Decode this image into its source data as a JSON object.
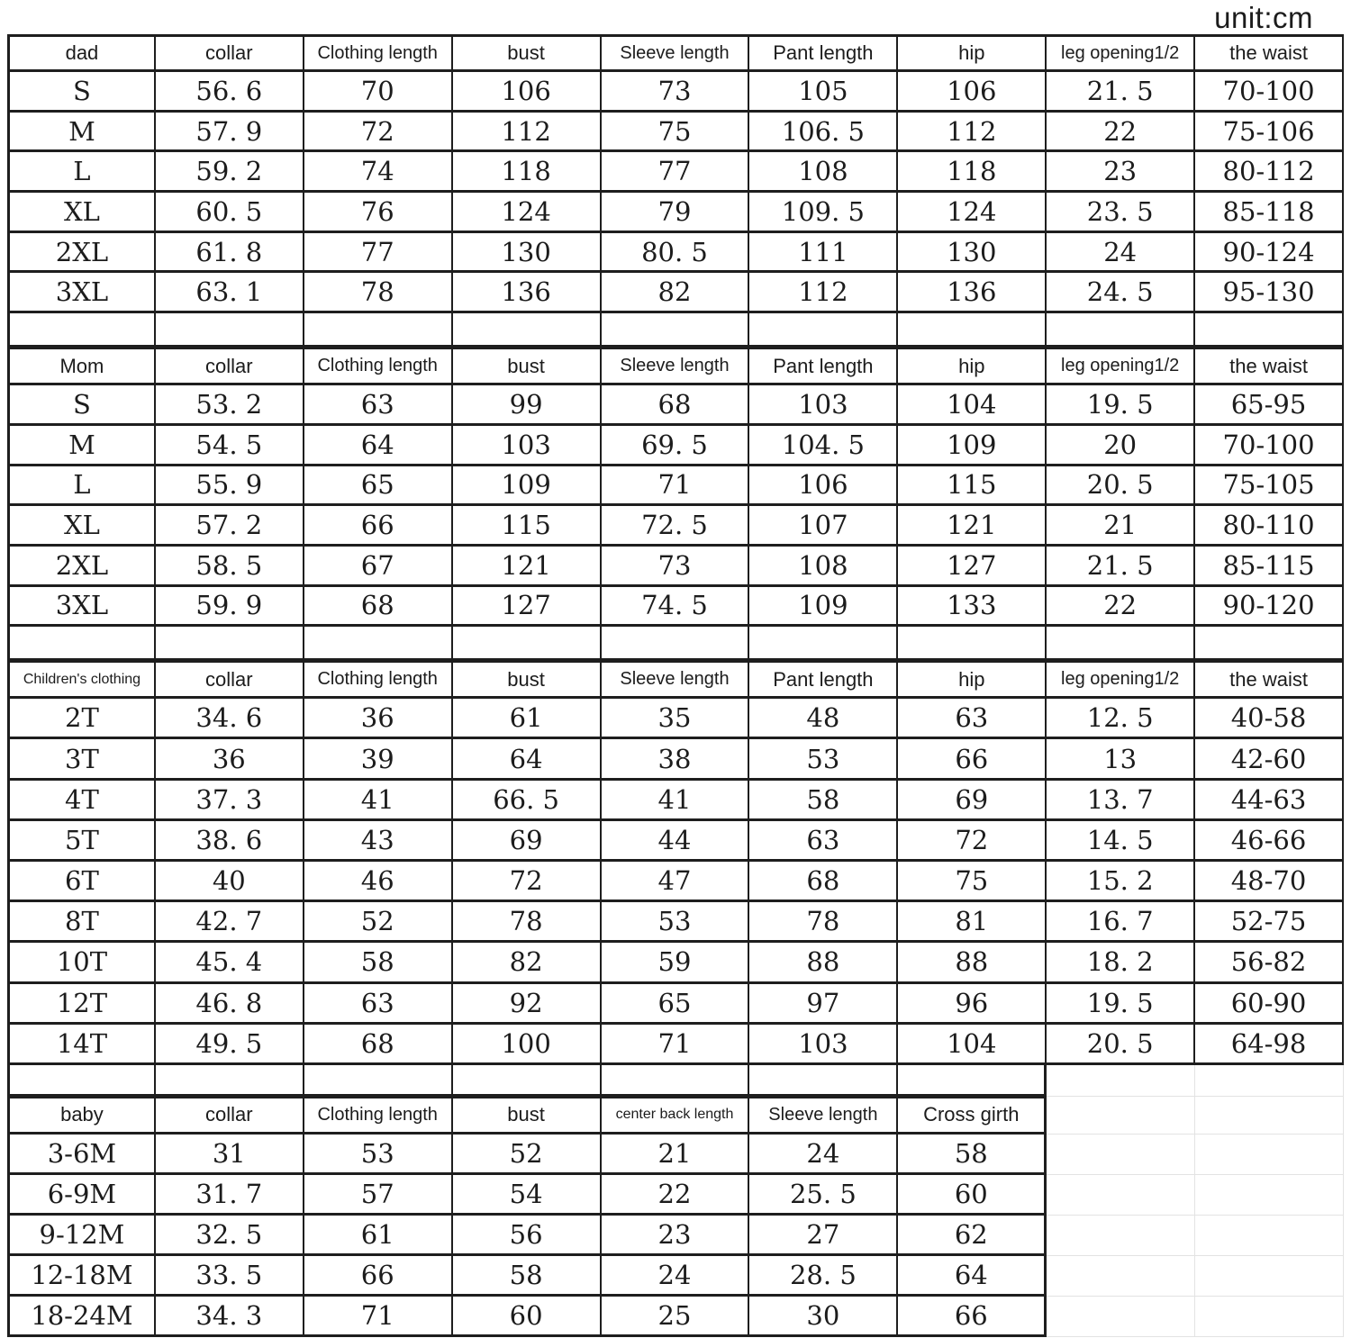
{
  "unit_label": "unit:cm",
  "colors": {
    "border": "#1e1e1e",
    "text": "#1c1c1c",
    "ghost_grid": "#e3e3e3",
    "background": "#ffffff"
  },
  "table": {
    "total_columns": 9,
    "sections": [
      {
        "id": "dad",
        "cols": 9,
        "header": [
          "dad",
          "collar",
          "Clothing length",
          "bust",
          "Sleeve length",
          "Pant length",
          "hip",
          "leg opening1/2",
          "the waist"
        ],
        "rows": [
          [
            "S",
            "56. 6",
            "70",
            "106",
            "73",
            "105",
            "106",
            "21. 5",
            "70-100"
          ],
          [
            "M",
            "57. 9",
            "72",
            "112",
            "75",
            "106. 5",
            "112",
            "22",
            "75-106"
          ],
          [
            "L",
            "59. 2",
            "74",
            "118",
            "77",
            "108",
            "118",
            "23",
            "80-112"
          ],
          [
            "XL",
            "60. 5",
            "76",
            "124",
            "79",
            "109. 5",
            "124",
            "23. 5",
            "85-118"
          ],
          [
            "2XL",
            "61. 8",
            "77",
            "130",
            "80. 5",
            "111",
            "130",
            "24",
            "90-124"
          ],
          [
            "3XL",
            "63. 1",
            "78",
            "136",
            "82",
            "112",
            "136",
            "24. 5",
            "95-130"
          ]
        ]
      },
      {
        "id": "mom",
        "cols": 9,
        "header": [
          "Mom",
          "collar",
          "Clothing length",
          "bust",
          "Sleeve length",
          "Pant length",
          "hip",
          "leg opening1/2",
          "the waist"
        ],
        "rows": [
          [
            "S",
            "53. 2",
            "63",
            "99",
            "68",
            "103",
            "104",
            "19. 5",
            "65-95"
          ],
          [
            "M",
            "54. 5",
            "64",
            "103",
            "69. 5",
            "104. 5",
            "109",
            "20",
            "70-100"
          ],
          [
            "L",
            "55. 9",
            "65",
            "109",
            "71",
            "106",
            "115",
            "20. 5",
            "75-105"
          ],
          [
            "XL",
            "57. 2",
            "66",
            "115",
            "72. 5",
            "107",
            "121",
            "21",
            "80-110"
          ],
          [
            "2XL",
            "58. 5",
            "67",
            "121",
            "73",
            "108",
            "127",
            "21. 5",
            "85-115"
          ],
          [
            "3XL",
            "59. 9",
            "68",
            "127",
            "74. 5",
            "109",
            "133",
            "22",
            "90-120"
          ]
        ]
      },
      {
        "id": "children",
        "cols": 9,
        "header": [
          "Children's clothing",
          "collar",
          "Clothing length",
          "bust",
          "Sleeve length",
          "Pant length",
          "hip",
          "leg opening1/2",
          "the waist"
        ],
        "rows": [
          [
            "2T",
            "34. 6",
            "36",
            "61",
            "35",
            "48",
            "63",
            "12. 5",
            "40-58"
          ],
          [
            "3T",
            "36",
            "39",
            "64",
            "38",
            "53",
            "66",
            "13",
            "42-60"
          ],
          [
            "4T",
            "37. 3",
            "41",
            "66. 5",
            "41",
            "58",
            "69",
            "13. 7",
            "44-63"
          ],
          [
            "5T",
            "38. 6",
            "43",
            "69",
            "44",
            "63",
            "72",
            "14. 5",
            "46-66"
          ],
          [
            "6T",
            "40",
            "46",
            "72",
            "47",
            "68",
            "75",
            "15. 2",
            "48-70"
          ],
          [
            "8T",
            "42. 7",
            "52",
            "78",
            "53",
            "78",
            "81",
            "16. 7",
            "52-75"
          ],
          [
            "10T",
            "45. 4",
            "58",
            "82",
            "59",
            "88",
            "88",
            "18. 2",
            "56-82"
          ],
          [
            "12T",
            "46. 8",
            "63",
            "92",
            "65",
            "97",
            "96",
            "19. 5",
            "60-90"
          ],
          [
            "14T",
            "49. 5",
            "68",
            "100",
            "71",
            "103",
            "104",
            "20. 5",
            "64-98"
          ]
        ]
      },
      {
        "id": "baby",
        "cols": 7,
        "header": [
          "baby",
          "collar",
          "Clothing length",
          "bust",
          "center back length",
          "Sleeve length",
          "Cross girth"
        ],
        "rows": [
          [
            "3-6M",
            "31",
            "53",
            "52",
            "21",
            "24",
            "58"
          ],
          [
            "6-9M",
            "31. 7",
            "57",
            "54",
            "22",
            "25. 5",
            "60"
          ],
          [
            "9-12M",
            "32. 5",
            "61",
            "56",
            "23",
            "27",
            "62"
          ],
          [
            "12-18M",
            "33. 5",
            "66",
            "58",
            "24",
            "28. 5",
            "64"
          ],
          [
            "18-24M",
            "34. 3",
            "71",
            "60",
            "25",
            "30",
            "66"
          ]
        ]
      }
    ]
  }
}
